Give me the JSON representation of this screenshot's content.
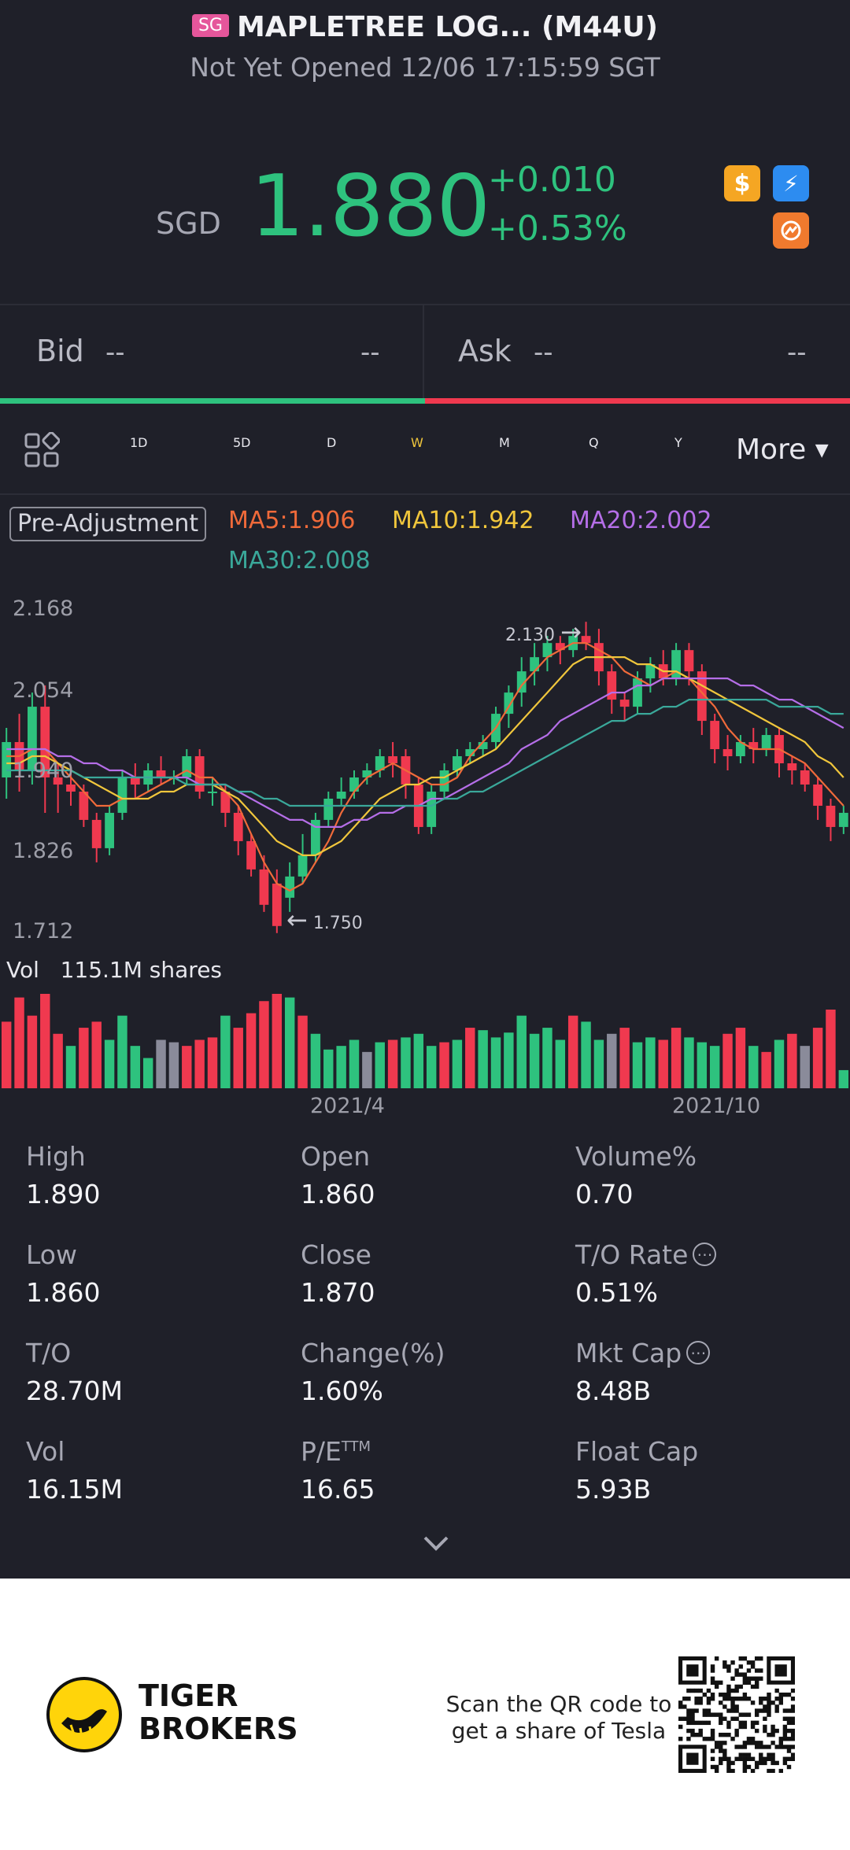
{
  "header": {
    "badge": "SG",
    "title": "MAPLETREE LOG... (M44U)",
    "status": "Not Yet Opened 12/06 17:15:59 SGT"
  },
  "quote": {
    "currency": "SGD",
    "price": "1.880",
    "change": "+0.010",
    "change_pct": "+0.53%",
    "up_color": "#2ec27e",
    "down_color": "#f0394f"
  },
  "badges": [
    {
      "icon": "dollar-icon",
      "glyph": "$",
      "color": "#f5a623"
    },
    {
      "icon": "lightning-icon",
      "glyph": "⚡",
      "color": "#2d8cf0"
    },
    {
      "icon": "share-icon",
      "glyph": "⊗",
      "color": "#f07a2e"
    }
  ],
  "orderbook": {
    "bid_label": "Bid",
    "bid_price": "--",
    "bid_size": "--",
    "ask_label": "Ask",
    "ask_price": "--",
    "ask_size": "--",
    "bid_ratio": 0.5
  },
  "tabs": {
    "items": [
      "1D",
      "5D",
      "D",
      "W",
      "M",
      "Q",
      "Y"
    ],
    "active": "W",
    "more": "More"
  },
  "chart_data": {
    "type": "candlestick",
    "pre_adjustment": "Pre-Adjustment",
    "ma": [
      {
        "label": "MA5:1.906",
        "color": "#f06a3a"
      },
      {
        "label": "MA10:1.942",
        "color": "#f0c63c"
      },
      {
        "label": "MA20:2.002",
        "color": "#b56ee8"
      },
      {
        "label": "MA30:2.008",
        "color": "#3aa89a"
      }
    ],
    "y_ticks": [
      "2.168",
      "2.054",
      "1.940",
      "1.826",
      "1.712"
    ],
    "ylim": [
      1.712,
      2.168
    ],
    "high_marker": "2.130",
    "low_marker": "1.750",
    "x_ticks": [
      "2021/4",
      "2021/10"
    ],
    "candles": [
      [
        1.93,
        1.98,
        2.0,
        1.9
      ],
      [
        1.98,
        1.94,
        2.02,
        1.91
      ],
      [
        1.94,
        2.03,
        2.05,
        1.92
      ],
      [
        2.03,
        1.93,
        2.06,
        1.88
      ],
      [
        1.93,
        1.92,
        1.95,
        1.88
      ],
      [
        1.92,
        1.91,
        1.94,
        1.89
      ],
      [
        1.91,
        1.87,
        1.92,
        1.86
      ],
      [
        1.87,
        1.83,
        1.88,
        1.81
      ],
      [
        1.83,
        1.88,
        1.89,
        1.82
      ],
      [
        1.88,
        1.93,
        1.94,
        1.87
      ],
      [
        1.93,
        1.92,
        1.95,
        1.9
      ],
      [
        1.92,
        1.94,
        1.95,
        1.91
      ],
      [
        1.94,
        1.93,
        1.96,
        1.92
      ],
      [
        1.93,
        1.93,
        1.94,
        1.92
      ],
      [
        1.93,
        1.96,
        1.97,
        1.92
      ],
      [
        1.96,
        1.91,
        1.97,
        1.9
      ],
      [
        1.91,
        1.91,
        1.93,
        1.89
      ],
      [
        1.91,
        1.88,
        1.92,
        1.86
      ],
      [
        1.88,
        1.84,
        1.89,
        1.82
      ],
      [
        1.84,
        1.8,
        1.85,
        1.79
      ],
      [
        1.8,
        1.75,
        1.82,
        1.74
      ],
      [
        1.78,
        1.72,
        1.8,
        1.71
      ],
      [
        1.76,
        1.79,
        1.81,
        1.74
      ],
      [
        1.79,
        1.82,
        1.85,
        1.78
      ],
      [
        1.82,
        1.87,
        1.88,
        1.81
      ],
      [
        1.87,
        1.9,
        1.91,
        1.86
      ],
      [
        1.9,
        1.91,
        1.93,
        1.89
      ],
      [
        1.91,
        1.93,
        1.94,
        1.9
      ],
      [
        1.93,
        1.94,
        1.95,
        1.92
      ],
      [
        1.94,
        1.96,
        1.97,
        1.93
      ],
      [
        1.96,
        1.95,
        1.98,
        1.93
      ],
      [
        1.96,
        1.92,
        1.97,
        1.9
      ],
      [
        1.92,
        1.86,
        1.93,
        1.85
      ],
      [
        1.86,
        1.91,
        1.92,
        1.85
      ],
      [
        1.91,
        1.94,
        1.95,
        1.9
      ],
      [
        1.94,
        1.96,
        1.97,
        1.93
      ],
      [
        1.96,
        1.97,
        1.98,
        1.95
      ],
      [
        1.97,
        1.98,
        1.99,
        1.96
      ],
      [
        1.98,
        2.02,
        2.03,
        1.97
      ],
      [
        2.02,
        2.05,
        2.06,
        2.0
      ],
      [
        2.05,
        2.08,
        2.1,
        2.03
      ],
      [
        2.08,
        2.1,
        2.12,
        2.06
      ],
      [
        2.1,
        2.12,
        2.13,
        2.08
      ],
      [
        2.12,
        2.11,
        2.13,
        2.09
      ],
      [
        2.11,
        2.13,
        2.14,
        2.1
      ],
      [
        2.13,
        2.12,
        2.15,
        2.11
      ],
      [
        2.12,
        2.08,
        2.14,
        2.06
      ],
      [
        2.08,
        2.04,
        2.09,
        2.02
      ],
      [
        2.04,
        2.03,
        2.05,
        2.01
      ],
      [
        2.03,
        2.07,
        2.08,
        2.02
      ],
      [
        2.07,
        2.09,
        2.1,
        2.05
      ],
      [
        2.09,
        2.07,
        2.11,
        2.06
      ],
      [
        2.07,
        2.11,
        2.12,
        2.06
      ],
      [
        2.11,
        2.08,
        2.12,
        2.06
      ],
      [
        2.08,
        2.01,
        2.09,
        1.99
      ],
      [
        2.01,
        1.97,
        2.02,
        1.95
      ],
      [
        1.97,
        1.96,
        1.99,
        1.94
      ],
      [
        1.96,
        1.98,
        1.99,
        1.95
      ],
      [
        1.98,
        1.97,
        2.0,
        1.95
      ],
      [
        1.97,
        1.99,
        2.0,
        1.96
      ],
      [
        1.99,
        1.95,
        2.0,
        1.93
      ],
      [
        1.95,
        1.94,
        1.96,
        1.92
      ],
      [
        1.94,
        1.92,
        1.95,
        1.91
      ],
      [
        1.92,
        1.89,
        1.93,
        1.87
      ],
      [
        1.89,
        1.86,
        1.9,
        1.84
      ],
      [
        1.86,
        1.88,
        1.89,
        1.85
      ]
    ],
    "ma5": [
      1.96,
      1.96,
      1.97,
      1.97,
      1.95,
      1.93,
      1.91,
      1.89,
      1.89,
      1.9,
      1.9,
      1.91,
      1.92,
      1.93,
      1.94,
      1.93,
      1.93,
      1.91,
      1.89,
      1.85,
      1.81,
      1.78,
      1.77,
      1.78,
      1.81,
      1.84,
      1.88,
      1.91,
      1.93,
      1.94,
      1.95,
      1.94,
      1.93,
      1.92,
      1.92,
      1.93,
      1.96,
      1.98,
      2.0,
      2.03,
      2.06,
      2.08,
      2.1,
      2.11,
      2.12,
      2.12,
      2.11,
      2.1,
      2.08,
      2.07,
      2.06,
      2.07,
      2.08,
      2.07,
      2.05,
      2.03,
      2.0,
      1.98,
      1.97,
      1.97,
      1.97,
      1.96,
      1.95,
      1.93,
      1.91,
      1.89
    ],
    "ma10": [
      1.95,
      1.95,
      1.96,
      1.96,
      1.95,
      1.94,
      1.93,
      1.92,
      1.91,
      1.9,
      1.9,
      1.9,
      1.91,
      1.91,
      1.92,
      1.92,
      1.92,
      1.91,
      1.9,
      1.88,
      1.86,
      1.84,
      1.83,
      1.82,
      1.82,
      1.83,
      1.84,
      1.86,
      1.88,
      1.9,
      1.91,
      1.92,
      1.92,
      1.93,
      1.93,
      1.94,
      1.95,
      1.96,
      1.97,
      1.99,
      2.01,
      2.03,
      2.05,
      2.07,
      2.09,
      2.1,
      2.1,
      2.1,
      2.1,
      2.09,
      2.09,
      2.08,
      2.08,
      2.07,
      2.06,
      2.05,
      2.04,
      2.03,
      2.02,
      2.01,
      2.0,
      1.99,
      1.98,
      1.96,
      1.95,
      1.93
    ],
    "ma20": [
      1.97,
      1.97,
      1.97,
      1.97,
      1.96,
      1.96,
      1.95,
      1.95,
      1.94,
      1.94,
      1.93,
      1.93,
      1.93,
      1.93,
      1.93,
      1.92,
      1.92,
      1.92,
      1.91,
      1.9,
      1.89,
      1.88,
      1.87,
      1.87,
      1.86,
      1.86,
      1.86,
      1.87,
      1.87,
      1.88,
      1.88,
      1.89,
      1.89,
      1.9,
      1.9,
      1.91,
      1.92,
      1.93,
      1.94,
      1.95,
      1.97,
      1.98,
      1.99,
      2.01,
      2.02,
      2.03,
      2.04,
      2.05,
      2.05,
      2.06,
      2.06,
      2.07,
      2.07,
      2.07,
      2.07,
      2.07,
      2.07,
      2.06,
      2.06,
      2.05,
      2.04,
      2.04,
      2.03,
      2.02,
      2.01,
      2.0
    ],
    "ma30": [
      1.94,
      1.94,
      1.94,
      1.94,
      1.94,
      1.94,
      1.93,
      1.93,
      1.93,
      1.93,
      1.93,
      1.93,
      1.93,
      1.93,
      1.92,
      1.92,
      1.92,
      1.92,
      1.91,
      1.91,
      1.9,
      1.9,
      1.89,
      1.89,
      1.89,
      1.89,
      1.89,
      1.89,
      1.89,
      1.89,
      1.89,
      1.89,
      1.89,
      1.89,
      1.9,
      1.9,
      1.91,
      1.91,
      1.92,
      1.93,
      1.94,
      1.95,
      1.96,
      1.97,
      1.98,
      1.99,
      2.0,
      2.01,
      2.01,
      2.02,
      2.02,
      2.03,
      2.03,
      2.04,
      2.04,
      2.04,
      2.04,
      2.04,
      2.04,
      2.04,
      2.03,
      2.03,
      2.03,
      2.03,
      2.02,
      2.02
    ],
    "volume_label": "Vol",
    "volume_total": "115.1M shares",
    "volumes": [
      55,
      75,
      60,
      78,
      45,
      35,
      50,
      55,
      40,
      60,
      35,
      25,
      40,
      38,
      35,
      40,
      42,
      60,
      50,
      62,
      72,
      78,
      75,
      60,
      45,
      32,
      35,
      40,
      30,
      38,
      40,
      42,
      45,
      35,
      38,
      40,
      50,
      48,
      42,
      46,
      60,
      45,
      50,
      40,
      60,
      55,
      40,
      45,
      50,
      38,
      42,
      40,
      50,
      42,
      38,
      35,
      45,
      50,
      35,
      30,
      40,
      45,
      35,
      50,
      65,
      15
    ],
    "volume_colors": [
      "r",
      "r",
      "r",
      "r",
      "r",
      "g",
      "r",
      "r",
      "g",
      "g",
      "g",
      "g",
      "n",
      "n",
      "r",
      "r",
      "r",
      "g",
      "r",
      "r",
      "r",
      "r",
      "g",
      "r",
      "g",
      "g",
      "g",
      "g",
      "n",
      "g",
      "r",
      "g",
      "g",
      "g",
      "r",
      "g",
      "r",
      "g",
      "g",
      "g",
      "g",
      "g",
      "g",
      "g",
      "r",
      "g",
      "g",
      "n",
      "r",
      "g",
      "g",
      "r",
      "r",
      "g",
      "g",
      "g",
      "r",
      "r",
      "g",
      "r",
      "g",
      "r",
      "n",
      "r",
      "r",
      "g"
    ]
  },
  "stats": [
    {
      "label": "High",
      "value": "1.890"
    },
    {
      "label": "Open",
      "value": "1.860"
    },
    {
      "label": "Volume%",
      "value": "0.70"
    },
    {
      "label": "Low",
      "value": "1.860"
    },
    {
      "label": "Close",
      "value": "1.870"
    },
    {
      "label": "T/O Rate",
      "value": "0.51%",
      "info": true
    },
    {
      "label": "T/O",
      "value": "28.70M"
    },
    {
      "label": "Change(%)",
      "value": "1.60%"
    },
    {
      "label": "Mkt Cap",
      "value": "8.48B",
      "info": true
    },
    {
      "label": "Vol",
      "value": "16.15M"
    },
    {
      "label": "P/E",
      "sup": "TTM",
      "value": "16.65"
    },
    {
      "label": "Float Cap",
      "value": "5.93B"
    }
  ],
  "footer": {
    "brand_line1": "TIGER",
    "brand_line2": "BROKERS",
    "promo_line1": "Scan the QR code to",
    "promo_line2": "get a share of Tesla"
  }
}
